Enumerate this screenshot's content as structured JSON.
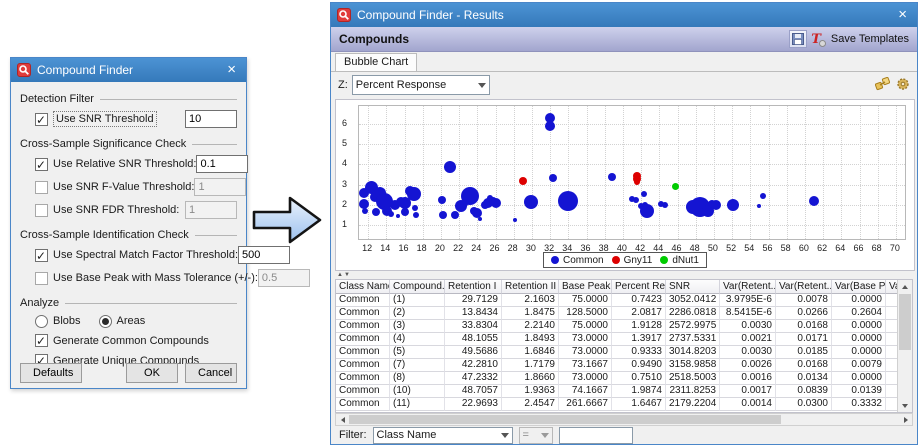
{
  "dialog": {
    "title": "Compound Finder",
    "close": "×",
    "sections": [
      "Detection Filter",
      "Cross-Sample Significance Check",
      "Cross-Sample Identification Check",
      "Analyze"
    ],
    "fields": [
      {
        "label": "Use SNR Threshold",
        "checked": true,
        "value": "10",
        "enabled": true
      },
      {
        "label": "Use Relative SNR Threshold:",
        "checked": true,
        "value": "0.1",
        "enabled": true
      },
      {
        "label": "Use SNR F-Value Threshold:",
        "checked": false,
        "value": "1",
        "enabled": false
      },
      {
        "label": "Use SNR FDR Threshold:",
        "checked": false,
        "value": "1",
        "enabled": false
      },
      {
        "label": "Use Spectral Match Factor Threshold:",
        "checked": true,
        "value": "500",
        "enabled": true
      },
      {
        "label": "Use Base Peak with Mass Tolerance (+/-):",
        "checked": false,
        "value": "0.5",
        "enabled": false
      }
    ],
    "analyze": {
      "blobs": {
        "label": "Blobs",
        "selected": false
      },
      "areas": {
        "label": "Areas",
        "selected": true
      },
      "common": {
        "label": "Generate Common Compounds",
        "checked": true
      },
      "unique": {
        "label": "Generate Unique Compounds",
        "checked": true
      }
    },
    "buttons": {
      "defaults": "Defaults",
      "ok": "OK",
      "cancel": "Cancel"
    }
  },
  "results": {
    "title": "Compound Finder - Results",
    "close": "×",
    "panel_title": "Compounds",
    "save_templates_label": "Save Templates",
    "template_icon_letter": "T",
    "tab_label": "Bubble Chart",
    "z_label": "Z:",
    "z_value": "Percent Response",
    "filter": {
      "label": "Filter:",
      "field": "Class Name",
      "op": "=",
      "value": ""
    }
  },
  "chart_data": {
    "type": "scatter",
    "title": "",
    "xlabel": "",
    "ylabel": "",
    "xlim": [
      11,
      71
    ],
    "ylim": [
      0.3,
      6.9
    ],
    "x_ticks": [
      12,
      14,
      16,
      18,
      20,
      22,
      24,
      26,
      28,
      30,
      32,
      34,
      36,
      38,
      40,
      42,
      44,
      46,
      48,
      50,
      52,
      54,
      56,
      58,
      60,
      62,
      64,
      66,
      68,
      70
    ],
    "y_ticks": [
      1,
      2,
      3,
      4,
      5,
      6
    ],
    "grid": "dotted",
    "legend_position": "bottom-center",
    "legend": [
      {
        "label": "Common",
        "color": "#1414d2"
      },
      {
        "label": "Gny11",
        "color": "#dd0000"
      },
      {
        "label": "dNut1",
        "color": "#00cc00"
      }
    ],
    "series": [
      {
        "name": "Common",
        "color": "#1414d2",
        "points": [
          [
            11.6,
            2.6,
            5
          ],
          [
            11.6,
            2.05,
            5
          ],
          [
            11.7,
            1.7,
            3
          ],
          [
            12.4,
            2.85,
            6.5
          ],
          [
            12.8,
            2.4,
            5
          ],
          [
            12.9,
            1.65,
            4
          ],
          [
            13.3,
            2.6,
            6
          ],
          [
            13.8,
            2.15,
            8.5
          ],
          [
            14.1,
            1.7,
            5
          ],
          [
            14.5,
            1.55,
            3
          ],
          [
            15.0,
            2.0,
            5
          ],
          [
            15.3,
            1.45,
            2
          ],
          [
            15.6,
            2.15,
            5
          ],
          [
            16.1,
            2.1,
            6
          ],
          [
            16.1,
            1.65,
            4
          ],
          [
            16.6,
            2.7,
            5
          ],
          [
            17.0,
            2.55,
            7
          ],
          [
            17.1,
            1.85,
            3
          ],
          [
            17.3,
            1.5,
            3
          ],
          [
            20.1,
            2.25,
            4
          ],
          [
            20.2,
            1.5,
            4
          ],
          [
            21.0,
            3.85,
            6
          ],
          [
            21.6,
            1.5,
            4
          ],
          [
            22.2,
            1.95,
            6
          ],
          [
            22.6,
            2.05,
            3
          ],
          [
            23.2,
            2.45,
            9
          ],
          [
            23.6,
            1.7,
            4
          ],
          [
            24.0,
            1.6,
            5
          ],
          [
            24.3,
            1.3,
            2
          ],
          [
            24.8,
            2.0,
            4
          ],
          [
            25.2,
            2.1,
            5
          ],
          [
            25.4,
            2.35,
            3
          ],
          [
            25.7,
            2.2,
            4
          ],
          [
            26.1,
            2.1,
            5
          ],
          [
            28.1,
            1.25,
            2
          ],
          [
            29.9,
            2.15,
            7
          ],
          [
            32.0,
            6.3,
            5
          ],
          [
            32.0,
            5.9,
            5
          ],
          [
            32.3,
            3.35,
            4
          ],
          [
            34.0,
            2.2,
            10
          ],
          [
            38.8,
            3.4,
            4
          ],
          [
            41.0,
            2.3,
            3
          ],
          [
            41.4,
            2.25,
            3
          ],
          [
            42.3,
            2.55,
            3
          ],
          [
            42.0,
            1.95,
            3
          ],
          [
            42.4,
            2.0,
            3
          ],
          [
            42.6,
            1.7,
            7
          ],
          [
            44.2,
            2.05,
            3
          ],
          [
            44.6,
            2.0,
            3
          ],
          [
            47.7,
            1.9,
            7
          ],
          [
            48.5,
            1.9,
            10
          ],
          [
            49.3,
            1.7,
            6
          ],
          [
            49.8,
            2.05,
            4
          ],
          [
            50.2,
            2.0,
            5
          ],
          [
            52.1,
            2.0,
            6
          ],
          [
            55.0,
            1.95,
            2
          ],
          [
            55.4,
            2.45,
            3
          ],
          [
            61.0,
            2.2,
            5
          ]
        ]
      },
      {
        "name": "Gny11",
        "color": "#dd0000",
        "points": [
          [
            29.0,
            3.2,
            4
          ],
          [
            41.5,
            3.45,
            4
          ],
          [
            41.5,
            3.3,
            4
          ],
          [
            41.5,
            3.15,
            3
          ]
        ]
      },
      {
        "name": "dNut1",
        "color": "#00cc00",
        "points": [
          [
            45.8,
            2.9,
            3.5
          ]
        ]
      }
    ]
  },
  "table": {
    "columns": [
      "Class Name",
      "Compound...",
      "Retention I",
      "Retention II",
      "Base Peak",
      "Percent Re...",
      "SNR",
      "Var(Retent...",
      "Var(Retent...",
      "Var(Base P...",
      "Va"
    ],
    "rows": [
      [
        "Common",
        "(1)",
        "29.7129",
        "2.1603",
        "75.0000",
        "0.7423",
        "3052.0412",
        "3.9795E-6",
        "0.0078",
        "0.0000",
        ""
      ],
      [
        "Common",
        "(2)",
        "13.8434",
        "1.8475",
        "128.5000",
        "2.0817",
        "2286.0818",
        "8.5415E-6",
        "0.0266",
        "0.2604",
        ""
      ],
      [
        "Common",
        "(3)",
        "33.8304",
        "2.2140",
        "75.0000",
        "1.9128",
        "2572.9975",
        "0.0030",
        "0.0168",
        "0.0000",
        ""
      ],
      [
        "Common",
        "(4)",
        "48.1055",
        "1.8493",
        "73.0000",
        "1.3917",
        "2737.5331",
        "0.0021",
        "0.0171",
        "0.0000",
        ""
      ],
      [
        "Common",
        "(5)",
        "49.5686",
        "1.6846",
        "73.0000",
        "0.9333",
        "3014.8203",
        "0.0030",
        "0.0185",
        "0.0000",
        ""
      ],
      [
        "Common",
        "(7)",
        "42.2810",
        "1.7179",
        "73.1667",
        "0.9490",
        "3158.9858",
        "0.0026",
        "0.0168",
        "0.0079",
        ""
      ],
      [
        "Common",
        "(8)",
        "47.2332",
        "1.8660",
        "73.0000",
        "0.7510",
        "2518.5003",
        "0.0016",
        "0.0134",
        "0.0000",
        ""
      ],
      [
        "Common",
        "(10)",
        "48.7057",
        "1.9363",
        "74.1667",
        "1.9874",
        "2311.8253",
        "0.0017",
        "0.0839",
        "0.0139",
        ""
      ],
      [
        "Common",
        "(11)",
        "22.9693",
        "2.4547",
        "261.6667",
        "1.6467",
        "2179.2204",
        "0.0014",
        "0.0300",
        "0.3332",
        ""
      ]
    ]
  }
}
